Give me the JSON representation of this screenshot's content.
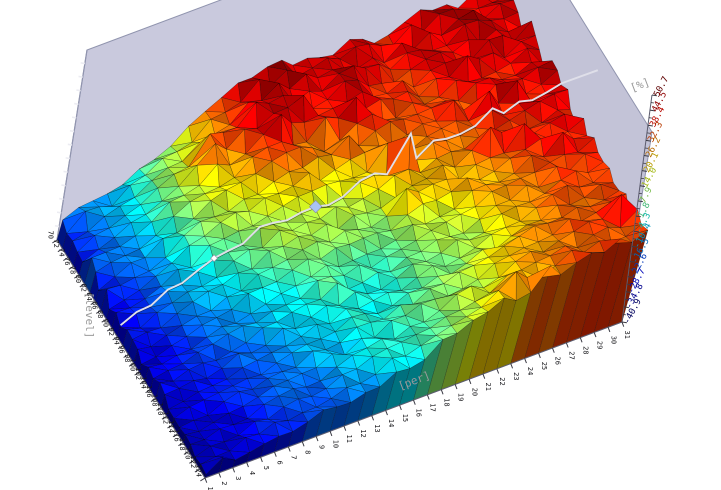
{
  "window": {
    "background": "#ffffff"
  },
  "colors": {
    "wall": "#c9c9dd",
    "wall_right": "#c3c3d7",
    "floor": "#c6c6da",
    "wall_edge": "#9094ae",
    "axis_line": "#5c5c6e",
    "tick_color": "#3a3a44",
    "tick_text": "#141418",
    "axis_label_text": "#9a9a9a",
    "section_line": "#dfdfe9",
    "marker_small": "#ffffff",
    "marker_large": "#a9c3f2",
    "edge_notch": "#ececf2"
  },
  "noise_seed": 11,
  "chart_data": {
    "type": "surface3d",
    "title": "",
    "colormap": "jet",
    "legend": "none",
    "axes": {
      "level": {
        "label": "[level]",
        "ticks": [
          70,
          72,
          74,
          76,
          78,
          80,
          82,
          84,
          86,
          88,
          90,
          92,
          94,
          96,
          98,
          100,
          102,
          104,
          106,
          108,
          110,
          112,
          114,
          116,
          118,
          120,
          122,
          124
        ]
      },
      "per": {
        "label": "[per]",
        "ticks": [
          1,
          2,
          3,
          4,
          5,
          6,
          7,
          8,
          9,
          10,
          11,
          12,
          13,
          14,
          15,
          16,
          17,
          18,
          19,
          20,
          21,
          22,
          23,
          24,
          25,
          26,
          27,
          28,
          29,
          30,
          31
        ]
      },
      "percent": {
        "label": "[%]",
        "ticks_top_to_bottom": [
          "50.7",
          "44.5",
          "38.4",
          "32.3",
          "26.2",
          "20.1",
          "14.0",
          "7.9",
          "1.8",
          "-4.3",
          "-10.4",
          "-16.5",
          "-22.6",
          "-28.7",
          "-34.8",
          "-40.9"
        ],
        "range": [
          -40.9,
          50.7
        ]
      }
    },
    "surface": {
      "description": "Spiky faceted surface of [%] over [per] x [level]; deep blue (negative %) at low per / front-left, rainbow ridge in the middle, red/dark-red (30-50%) over the right half. Values below are approximate samples read from the rendering.",
      "per_samples": [
        1,
        4,
        7,
        10,
        13,
        16,
        19,
        22,
        25,
        28,
        31
      ],
      "level_samples": [
        70,
        78,
        85,
        93,
        101,
        108,
        116,
        124
      ],
      "z_grid_percent": [
        [
          -24,
          -14,
          2,
          26,
          44,
          48,
          42,
          40,
          44,
          42,
          40
        ],
        [
          -26,
          -12,
          12,
          30,
          46,
          38,
          45,
          36,
          40,
          44,
          42
        ],
        [
          -28,
          -16,
          6,
          16,
          28,
          22,
          32,
          28,
          36,
          40,
          42
        ],
        [
          -30,
          -20,
          -6,
          8,
          14,
          10,
          20,
          26,
          34,
          38,
          40
        ],
        [
          -31,
          -24,
          -14,
          -2,
          6,
          2,
          10,
          18,
          28,
          34,
          37
        ],
        [
          -33,
          -27,
          -20,
          -10,
          -4,
          -6,
          4,
          10,
          22,
          30,
          35
        ],
        [
          -34,
          -29,
          -23,
          -16,
          -8,
          0,
          8,
          16,
          26,
          32,
          34
        ],
        [
          -35,
          -31,
          -26,
          -19,
          -12,
          -3,
          12,
          22,
          30,
          32,
          35
        ]
      ]
    },
    "section": {
      "level": 92,
      "marker_small_per": 7,
      "marker_large_per": 14
    }
  }
}
